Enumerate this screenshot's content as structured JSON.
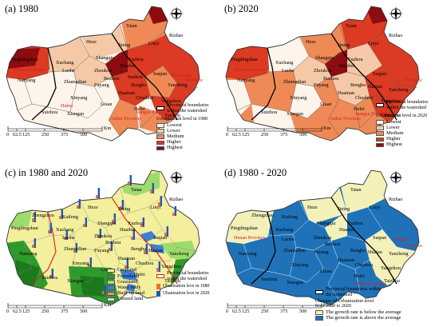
{
  "panels": [
    {
      "title": "(a) 1980",
      "legend_title": "Urbanization level in 1980",
      "legend_items": [
        "Lowest",
        "Lower",
        "Medium",
        "Higher",
        "Highest"
      ],
      "legend_colors": [
        "#fdf4ec",
        "#f5c9a7",
        "#ef8a57",
        "#dc3a22",
        "#8c0c10"
      ],
      "boundary_label": "Provincial boundaries within the watershed"
    },
    {
      "title": "(b) 2020",
      "legend_title": "Urbanization level in 2020",
      "legend_items": [
        "Lowest",
        "Lower",
        "Medium",
        "Higher",
        "Highest"
      ],
      "legend_colors": [
        "#fdf4ec",
        "#f5c9a7",
        "#ef8a57",
        "#dc3a22",
        "#8c0c10"
      ],
      "boundary_label": "Provincial boundaries within the watershed"
    },
    {
      "title": "(c) in 1980 and 2020",
      "legend_items": [
        "Cropland",
        "Forestland",
        "Grassland",
        "Water body",
        "Built-up land",
        "Unused land"
      ],
      "legend_colors": [
        "#f3ef9c",
        "#2e9a2c",
        "#9ddc6c",
        "#3a7fd6",
        "#ea8e8e",
        "#d7d7d7"
      ],
      "boundary_label": "Provincial boundaries within the watershed",
      "bar_legend": [
        "Ubanization leve in 1980",
        "Ubanization leve in 2020"
      ],
      "bar_colors": [
        "#f26c2a",
        "#2457b8"
      ]
    },
    {
      "title": "(d) 1980 - 2020",
      "boundary_label": "Provincial boundaries within the watershed",
      "legend_title": "Changes of Urbanization level from 1980 to 2020",
      "legend_items": [
        "The growth rate is below the average",
        "The growth rate is above the average"
      ],
      "legend_colors": [
        "#f3f1b8",
        "#1f72b8"
      ]
    }
  ],
  "scale": {
    "ticks": [
      "0",
      "62.5",
      "125",
      "250",
      "375",
      "500"
    ],
    "unit": "Km"
  },
  "place_names": {
    "a": [
      "Taian",
      "Rizhao",
      "Heze",
      "Jining",
      "Linyi",
      "Shangqiu",
      "Xuzhou",
      "Pingdingshan",
      "Xuchang",
      "Huaibei",
      "Henan Province",
      "Luohe",
      "Zhoukou",
      "Bozhou",
      "Suzhou",
      "Suqian",
      "Nanyang",
      "Zhumadian",
      "Fuyang",
      "Bengbu",
      "Huainan",
      "Yancheng",
      "Chuzhou",
      "Yangzhou",
      "Xinyang",
      "Liuan",
      "Hefei",
      "Anhui Province",
      "Jiangsu Province",
      "Suizhou",
      "Xiaogan",
      "Taizhou",
      "Shandong",
      "Province",
      "Hubei"
    ],
    "b": [
      "Taian",
      "Rizhao",
      "Heze",
      "Jining",
      "Linyi",
      "Pingdingshan",
      "Xuchang",
      "Shangqiu",
      "Xuzhou",
      "Henan Province",
      "Luohe",
      "Huaibei",
      "Suqian",
      "Nanyang",
      "Zhoukou",
      "Bozhou",
      "Zhumadian",
      "Fuyang",
      "Bengbu",
      "Huaian",
      "Huainan",
      "Yancheng",
      "Chuzhou",
      "Xinyang",
      "Liuan",
      "Hefei",
      "Yangzhou",
      "Anhui Province",
      "Jiangsu Province",
      "Suizhou",
      "Xiaogan",
      "Taizhou",
      "Province"
    ],
    "c": [
      "Taian",
      "Rizhao",
      "Heze",
      "Jining",
      "Linyi",
      "Zhengzhou",
      "Kaifeng",
      "Shangqiu",
      "Xuzhou",
      "Pingdingshan",
      "Xuchang",
      "Huaibei",
      "Suqian",
      "Luohe",
      "Zhoukou",
      "Bozhou",
      "Nanyang",
      "Zhumadian",
      "Fuyang",
      "Bengbu",
      "Huaian",
      "Huainan",
      "Yancheng",
      "Chuzhou",
      "Xinyang",
      "Liuan",
      "Hefei",
      "Yangzhou",
      "Taizhou",
      "Suizhou",
      "Xiaogan"
    ],
    "d": [
      "Taian",
      "Rizhao",
      "Heze",
      "Jining",
      "Linyi",
      "Zhengzhou",
      "Kaifeng",
      "Shangqiu",
      "Xuzhou",
      "Pingdingshan",
      "Xuchang",
      "Huaibei",
      "Suqian",
      "Henan Province",
      "Luohe",
      "Zhoukou",
      "Bozhou",
      "Nanyang",
      "Zhumadian",
      "Fuyang",
      "Bengbu",
      "Huaian",
      "Huainan",
      "Yancheng",
      "Chuzhou",
      "Xinyang",
      "Liuan",
      "Hefei",
      "Yangzhou",
      "Hubei Province",
      "Suizhou",
      "Xiaogan",
      "Taizhou",
      "Jiangsu",
      "Province"
    ]
  }
}
